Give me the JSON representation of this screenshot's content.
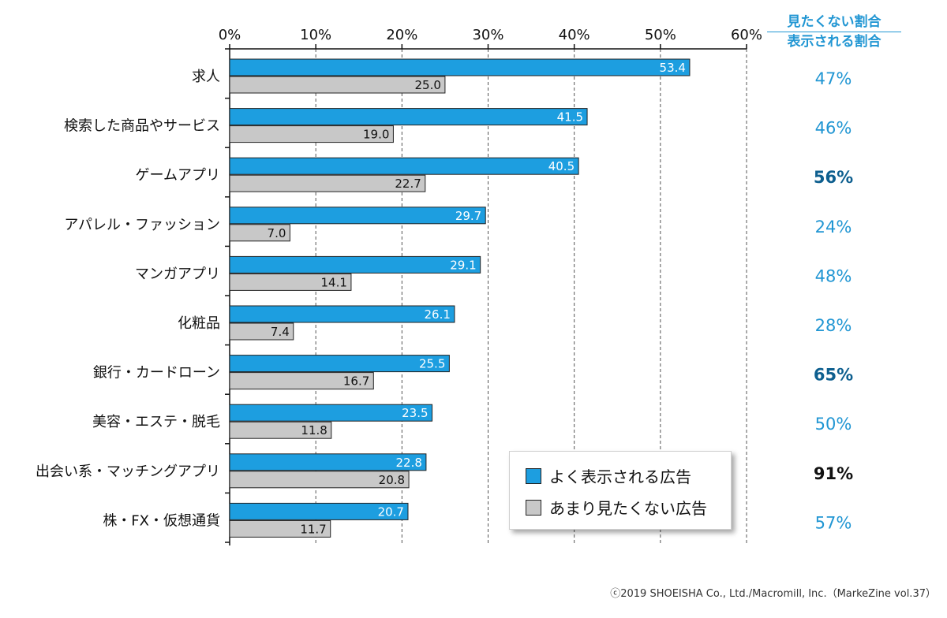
{
  "chart_data": {
    "type": "bar",
    "orientation": "horizontal",
    "categories": [
      "求人",
      "検索した商品やサービス",
      "ゲームアプリ",
      "アパレル・ファッション",
      "マンガアプリ",
      "化粧品",
      "銀行・カードローン",
      "美容・エステ・脱毛",
      "出会い系・マッチングアプリ",
      "株・FX・仮想通貨"
    ],
    "series": [
      {
        "name": "よく表示される広告",
        "values": [
          53.4,
          41.5,
          40.5,
          29.7,
          29.1,
          26.1,
          25.5,
          23.5,
          22.8,
          20.7
        ],
        "color": "#1d9ee0"
      },
      {
        "name": "あまり見たくない広告",
        "values": [
          25.0,
          19.0,
          22.7,
          7.0,
          14.1,
          7.4,
          16.7,
          11.8,
          20.8,
          11.7
        ],
        "color": "#c8c8c8"
      }
    ],
    "xlim": [
      0,
      60
    ],
    "xticks": [
      "0%",
      "10%",
      "20%",
      "30%",
      "40%",
      "50%",
      "60%"
    ],
    "grid": "vertical-dashed",
    "legend_position": "bottom-right",
    "ratio_header_top": "見たくない割合",
    "ratio_header_bottom": "表示される割合",
    "ratios": [
      {
        "label": "47%",
        "style": "normal"
      },
      {
        "label": "46%",
        "style": "normal"
      },
      {
        "label": "56%",
        "style": "bold-dark"
      },
      {
        "label": "24%",
        "style": "normal"
      },
      {
        "label": "48%",
        "style": "normal"
      },
      {
        "label": "28%",
        "style": "normal"
      },
      {
        "label": "65%",
        "style": "bold-dark"
      },
      {
        "label": "50%",
        "style": "normal"
      },
      {
        "label": "91%",
        "style": "bold-black"
      },
      {
        "label": "57%",
        "style": "normal"
      }
    ]
  },
  "colors": {
    "blue_bar": "#1d9ee0",
    "gray_bar": "#c8c8c8",
    "ratio_normal": "#2196d3",
    "ratio_bold": "#0e5f8f",
    "ratio_black": "#111111"
  },
  "footer": "ⓒ2019 SHOEISHA Co., Ltd./Macromill, Inc.（MarkeZine vol.37）"
}
